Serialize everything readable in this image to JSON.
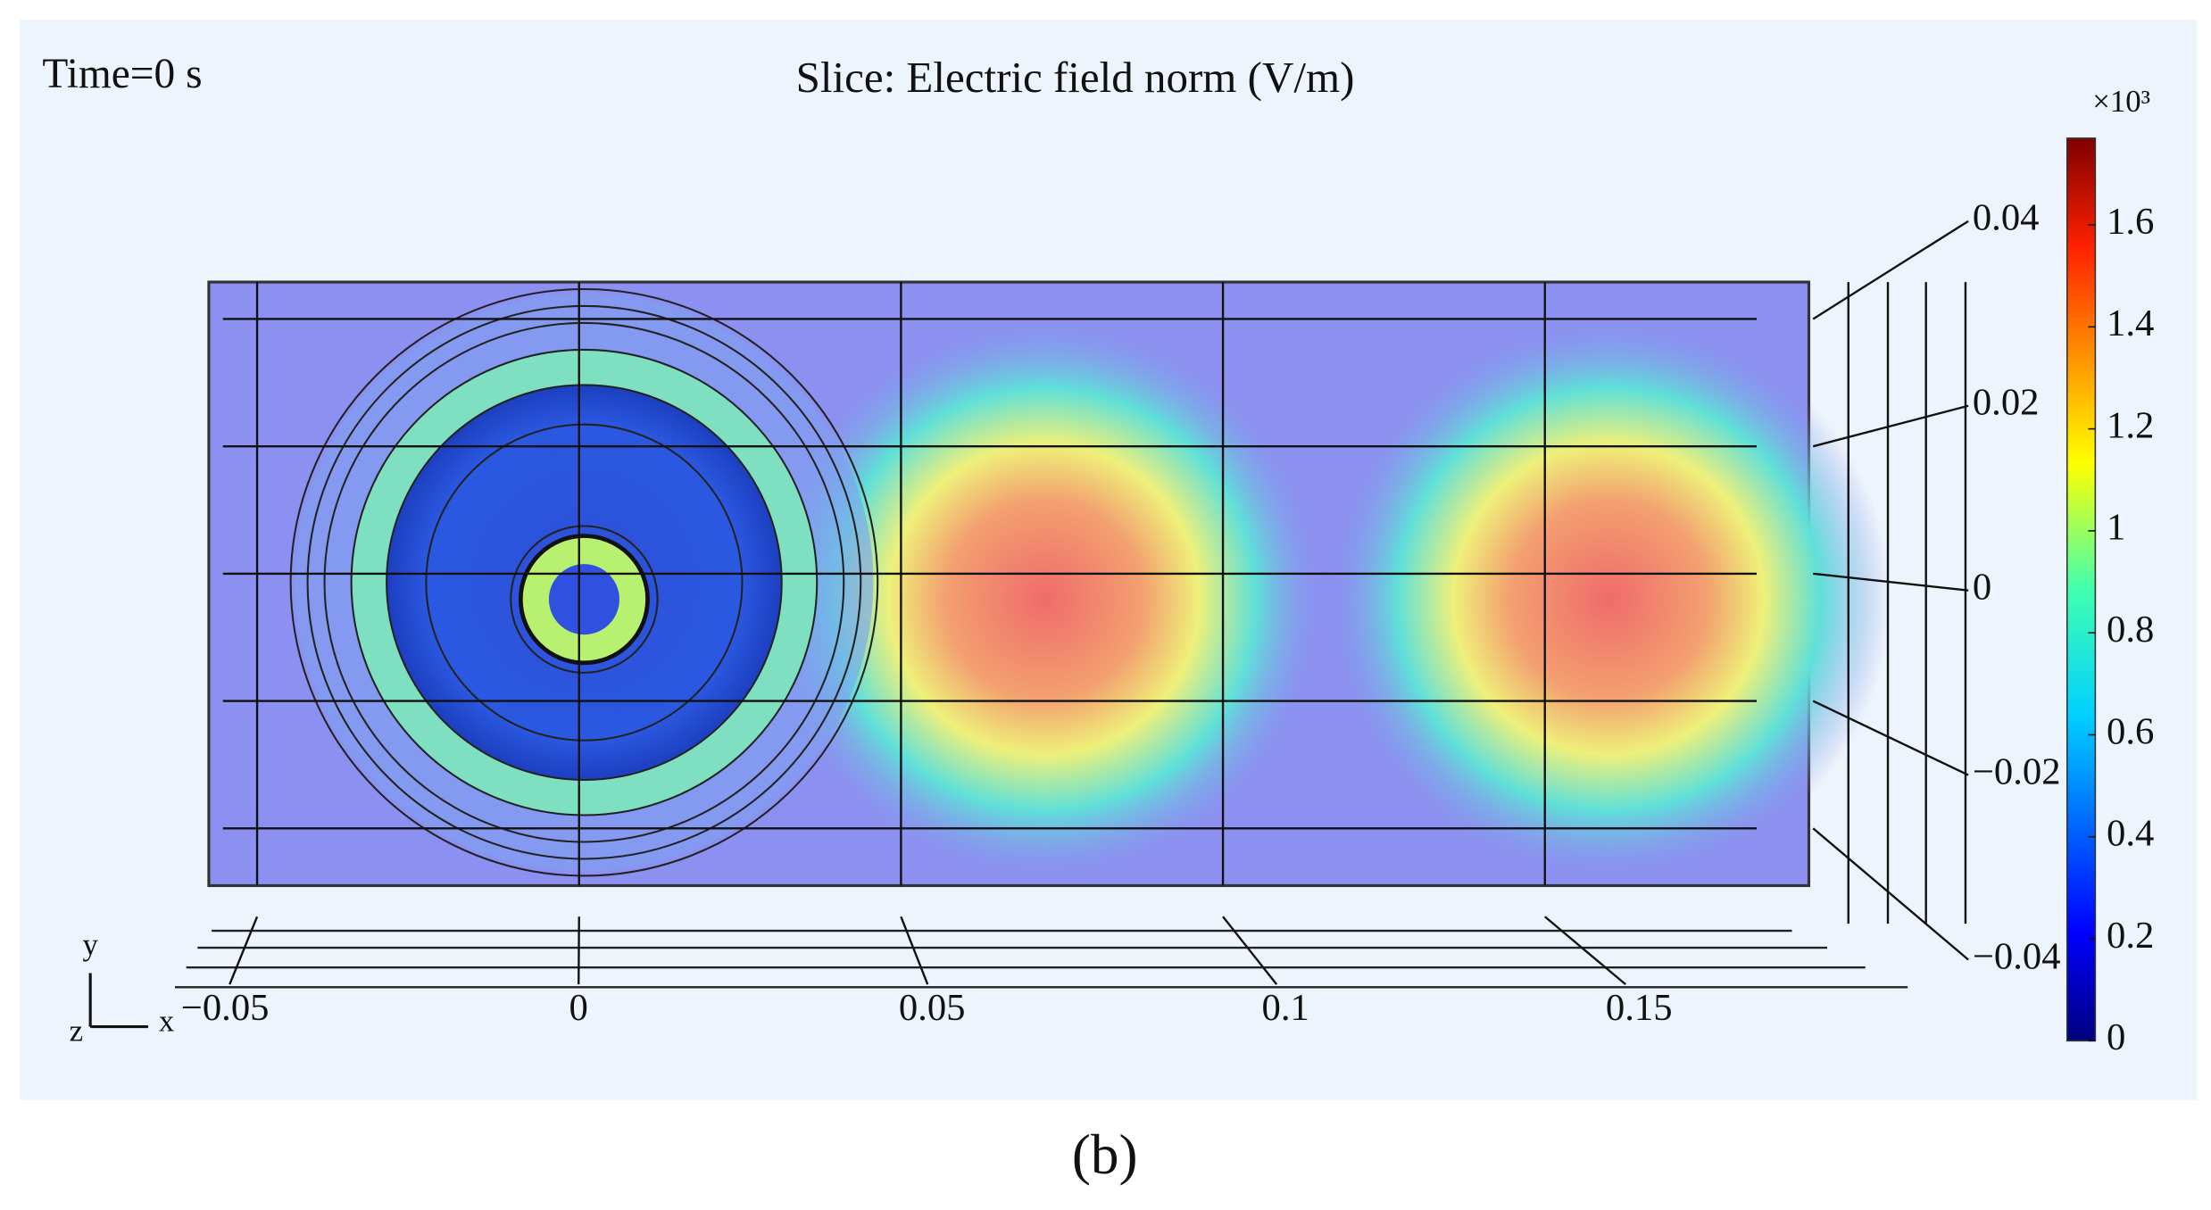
{
  "chart_data": {
    "type": "field",
    "time_label": "Time=0 s",
    "title": "Slice: Electric field norm (V/m)",
    "xlim": [
      -0.0575,
      0.191
    ],
    "xticks": [
      {
        "value": -0.05,
        "label": "−0.05"
      },
      0,
      0.05,
      0.1,
      0.15
    ],
    "ylim": [
      -0.049,
      0.0458
    ],
    "yticks": [
      {
        "value": -0.04,
        "label": "−0.04"
      },
      {
        "value": -0.02,
        "label": "−0.02"
      },
      0,
      0.02,
      0.04
    ],
    "colorbar_multiplier": "×10³",
    "clim": [
      0,
      1.77
    ],
    "cticks": [
      0,
      0.2,
      0.4,
      0.6,
      0.8,
      1,
      1.2,
      1.4,
      1.6
    ],
    "axis_labels": {
      "y": "y",
      "z": "z",
      "x": "x"
    },
    "caption": "(b)"
  }
}
